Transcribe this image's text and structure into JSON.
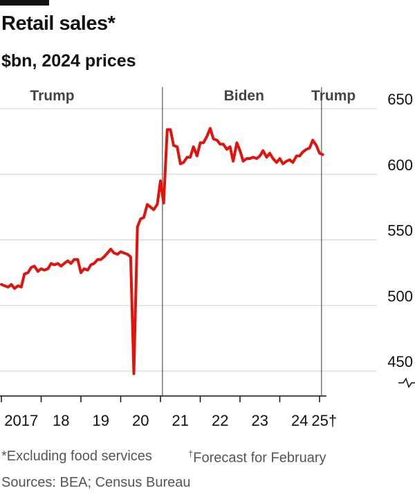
{
  "header": {
    "title": "Retail sales*",
    "subtitle": "$bn, 2024 prices"
  },
  "footer": {
    "note1": "*Excluding food services",
    "note2_mark": "†",
    "note2": "Forecast for February",
    "sources": "Sources: BEA; Census Bureau"
  },
  "colors": {
    "line": "#e3120b",
    "grid": "#cfcfcf",
    "text": "#111111"
  },
  "chart_data": {
    "type": "line",
    "title": "Retail sales*",
    "subtitle": "$bn, 2024 prices",
    "ylim": [
      440,
      650
    ],
    "y_axis_break": true,
    "yticks": [
      450,
      500,
      550,
      600,
      650
    ],
    "xlim": [
      2017.0,
      2025.2
    ],
    "xticks": [
      {
        "value": 2017,
        "label": "2017"
      },
      {
        "value": 2018,
        "label": "18"
      },
      {
        "value": 2019,
        "label": "19"
      },
      {
        "value": 2020,
        "label": "20"
      },
      {
        "value": 2021,
        "label": "21"
      },
      {
        "value": 2022,
        "label": "22"
      },
      {
        "value": 2023,
        "label": "23"
      },
      {
        "value": 2024,
        "label": "24"
      },
      {
        "value": 2025,
        "label": "25†"
      }
    ],
    "periods": [
      {
        "label": "Trump",
        "start": 2017.0,
        "end": 2021.05
      },
      {
        "label": "Biden",
        "start": 2021.05,
        "end": 2025.05
      },
      {
        "label": "Trump",
        "start": 2025.05,
        "end": 2025.2
      }
    ],
    "dividers": [
      2021.05,
      2025.05
    ],
    "series": [
      {
        "x": [
          2017.0,
          2017.08,
          2017.17,
          2017.25,
          2017.33,
          2017.42,
          2017.5,
          2017.58,
          2017.67,
          2017.75,
          2017.83,
          2017.92,
          2018.0,
          2018.08,
          2018.17,
          2018.25,
          2018.33,
          2018.42,
          2018.5,
          2018.58,
          2018.67,
          2018.75,
          2018.83,
          2018.92,
          2019.0,
          2019.08,
          2019.17,
          2019.25,
          2019.33,
          2019.42,
          2019.5,
          2019.58,
          2019.67,
          2019.75,
          2019.83,
          2019.92,
          2020.0,
          2020.08,
          2020.17,
          2020.25,
          2020.33,
          2020.42,
          2020.5,
          2020.58,
          2020.67,
          2020.75,
          2020.83,
          2020.92,
          2021.0,
          2021.08,
          2021.17,
          2021.25,
          2021.33,
          2021.42,
          2021.5,
          2021.58,
          2021.67,
          2021.75,
          2021.83,
          2021.92,
          2022.0,
          2022.08,
          2022.17,
          2022.25,
          2022.33,
          2022.42,
          2022.5,
          2022.58,
          2022.67,
          2022.75,
          2022.83,
          2022.92,
          2023.0,
          2023.08,
          2023.17,
          2023.25,
          2023.33,
          2023.42,
          2023.5,
          2023.58,
          2023.67,
          2023.75,
          2023.83,
          2023.92,
          2024.0,
          2024.08,
          2024.17,
          2024.25,
          2024.33,
          2024.42,
          2024.5,
          2024.58,
          2024.67,
          2024.75,
          2024.83,
          2024.92,
          2025.0,
          2025.08
        ],
        "y": [
          516,
          515,
          514,
          516,
          513,
          515,
          514,
          524,
          525,
          529,
          530,
          526,
          528,
          527,
          528,
          532,
          531,
          532,
          530,
          532,
          534,
          532,
          535,
          535,
          525,
          528,
          527,
          531,
          532,
          535,
          535,
          537,
          540,
          543,
          540,
          539,
          541,
          540,
          539,
          537,
          448,
          560,
          566,
          567,
          577,
          575,
          573,
          577,
          595,
          578,
          634,
          634,
          622,
          621,
          608,
          609,
          613,
          613,
          621,
          614,
          624,
          624,
          629,
          635,
          627,
          626,
          623,
          623,
          619,
          621,
          610,
          624,
          618,
          610,
          612,
          612,
          613,
          612,
          614,
          618,
          613,
          616,
          612,
          609,
          612,
          608,
          610,
          611,
          609,
          614,
          614,
          617,
          619,
          620,
          626,
          622,
          616,
          615
        ]
      }
    ]
  }
}
